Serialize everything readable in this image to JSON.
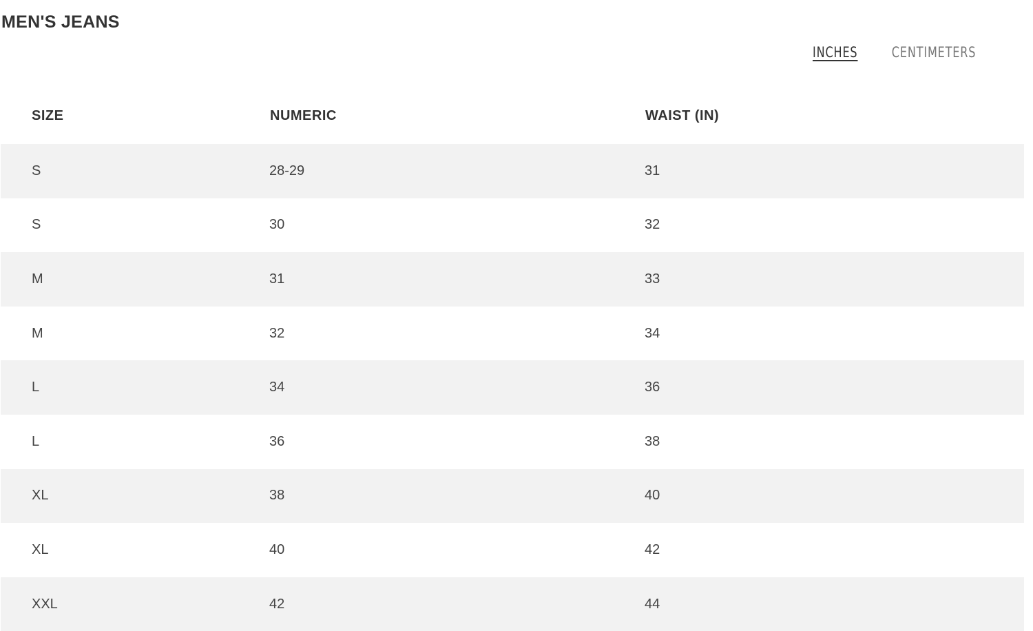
{
  "title": "MEN'S JEANS",
  "units": {
    "inches": "INCHES",
    "centimeters": "CENTIMETERS",
    "selected": "inches"
  },
  "table": {
    "headers": [
      "SIZE",
      "NUMERIC",
      "WAIST (IN)"
    ],
    "rows": [
      [
        "S",
        "28-29",
        "31"
      ],
      [
        "S",
        "30",
        "32"
      ],
      [
        "M",
        "31",
        "33"
      ],
      [
        "M",
        "32",
        "34"
      ],
      [
        "L",
        "34",
        "36"
      ],
      [
        "L",
        "36",
        "38"
      ],
      [
        "XL",
        "38",
        "40"
      ],
      [
        "XL",
        "40",
        "42"
      ],
      [
        "XXL",
        "42",
        "44"
      ]
    ]
  }
}
